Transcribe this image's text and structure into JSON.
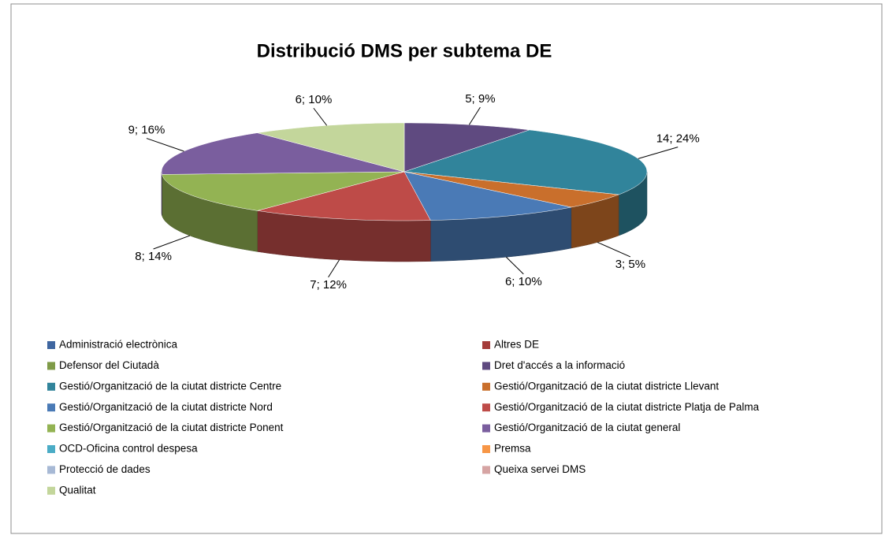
{
  "chart_data": {
    "type": "pie3d",
    "title": "Distribució DMS per subtema DE",
    "categories": [
      "Administració electrònica",
      "Altres DE",
      "Defensor del Ciutadà",
      "Dret d'accés a la informació",
      "Gestió/Organització de la ciutat districte Centre",
      "Gestió/Organització de la ciutat districte Llevant",
      "Gestió/Organització de la ciutat districte Nord",
      "Gestió/Organització de la ciutat districte Platja de Palma",
      "Gestió/Organització de la ciutat districte Ponent",
      "Gestió/Organització de la ciutat general",
      "OCD-Oficina control despesa",
      "Premsa",
      "Protecció de dades",
      "Queixa servei DMS",
      "Qualitat"
    ],
    "values": [
      0,
      0,
      0,
      5,
      14,
      3,
      6,
      7,
      8,
      9,
      0,
      0,
      0,
      0,
      6
    ],
    "value_labels": [
      null,
      null,
      null,
      "5; 9%",
      "14; 24%",
      "3; 5%",
      "6; 10%",
      "7; 12%",
      "8; 14%",
      "9; 16%",
      null,
      null,
      null,
      null,
      "6; 10%"
    ],
    "colors": [
      "#3f66a0",
      "#a43c3a",
      "#7f9b48",
      "#5f4a80",
      "#31849b",
      "#c96f2c",
      "#4a7ab6",
      "#be4b48",
      "#93b353",
      "#7a5e9e",
      "#4bacc6",
      "#f79646",
      "#a7b9d5",
      "#d6a4a3",
      "#c3d69b"
    ],
    "legend": "bottom"
  }
}
